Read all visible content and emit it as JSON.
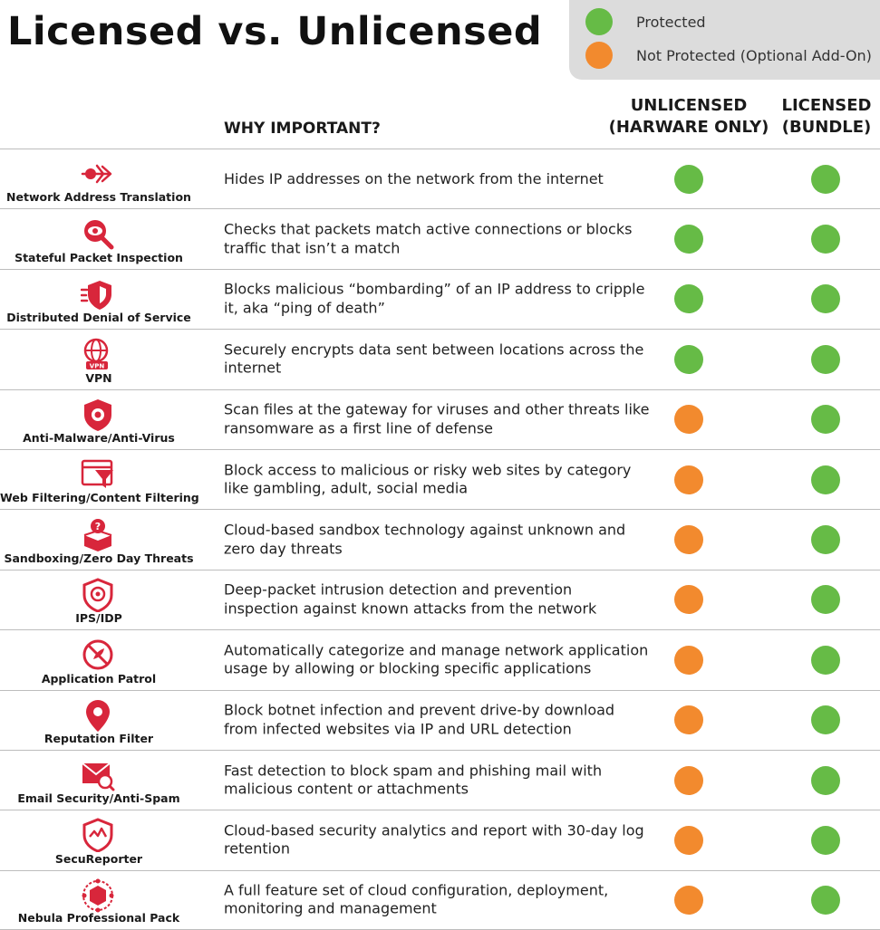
{
  "title": "Licensed vs. Unlicensed",
  "colors": {
    "protected": "#66bb46",
    "not_protected": "#f28a2e",
    "accent": "#d8263b"
  },
  "legend": [
    {
      "label": "Protected",
      "color": "protected"
    },
    {
      "label": "Not Protected (Optional Add-On)",
      "color": "not_protected"
    }
  ],
  "header": {
    "why": "WHY IMPORTANT?",
    "unlicensed_1": "UNLICENSED",
    "unlicensed_2": "(HARWARE ONLY)",
    "licensed_1": "LICENSED",
    "licensed_2": "(BUNDLE)"
  },
  "rows": [
    {
      "feature": "Network Address Translation",
      "icon": "nat-arrow-icon",
      "desc": "Hides IP addresses on the network from the internet",
      "unlicensed": "protected",
      "licensed": "protected"
    },
    {
      "feature": "Stateful Packet Inspection",
      "icon": "magnifier-eye-icon",
      "desc": "Checks that packets match active connections or blocks traffic that isn’t a match",
      "unlicensed": "protected",
      "licensed": "protected"
    },
    {
      "feature": "Distributed Denial of Service",
      "icon": "shield-speed-icon",
      "desc": "Blocks malicious “bombarding” of an IP address to cripple it, aka “ping of death”",
      "unlicensed": "protected",
      "licensed": "protected"
    },
    {
      "feature": "VPN",
      "icon": "globe-vpn-icon",
      "desc": "Securely encrypts data sent between locations across the internet",
      "unlicensed": "protected",
      "licensed": "protected"
    },
    {
      "feature": "Anti-Malware/Anti-Virus",
      "icon": "shield-virus-icon",
      "desc": "Scan files at the gateway for viruses and other threats like ransomware as a first line of defense",
      "unlicensed": "not_protected",
      "licensed": "protected"
    },
    {
      "feature": "Web Filtering/Content Filtering",
      "icon": "browser-filter-icon",
      "desc": "Block access to malicious or risky web sites by category like gambling, adult, social media",
      "unlicensed": "not_protected",
      "licensed": "protected"
    },
    {
      "feature": "Sandboxing/Zero Day Threats",
      "icon": "sandbox-box-icon",
      "desc": "Cloud-based sandbox technology against unknown and zero day threats",
      "unlicensed": "not_protected",
      "licensed": "protected"
    },
    {
      "feature": "IPS/IDP",
      "icon": "shield-target-icon",
      "desc": "Deep-packet intrusion detection and prevention inspection against known attacks from the network",
      "unlicensed": "not_protected",
      "licensed": "protected"
    },
    {
      "feature": "Application Patrol",
      "icon": "blocked-circle-icon",
      "desc": "Automatically categorize and manage network application usage by allowing or blocking specific applications",
      "unlicensed": "not_protected",
      "licensed": "protected"
    },
    {
      "feature": "Reputation Filter",
      "icon": "location-pin-icon",
      "desc": "Block botnet infection and prevent drive-by download from infected websites via IP and URL detection",
      "unlicensed": "not_protected",
      "licensed": "protected"
    },
    {
      "feature": "Email Security/Anti-Spam",
      "icon": "envelope-search-icon",
      "desc": "Fast detection to block spam and phishing mail with malicious content or attachments",
      "unlicensed": "not_protected",
      "licensed": "protected"
    },
    {
      "feature": "SecuReporter",
      "icon": "shield-wave-icon",
      "desc": "Cloud-based security analytics and report with 30-day log retention",
      "unlicensed": "not_protected",
      "licensed": "protected"
    },
    {
      "feature": "Nebula Professional Pack",
      "icon": "network-gem-icon",
      "desc": "A full feature set of cloud configuration, deployment, monitoring and management",
      "unlicensed": "not_protected",
      "licensed": "protected"
    }
  ]
}
